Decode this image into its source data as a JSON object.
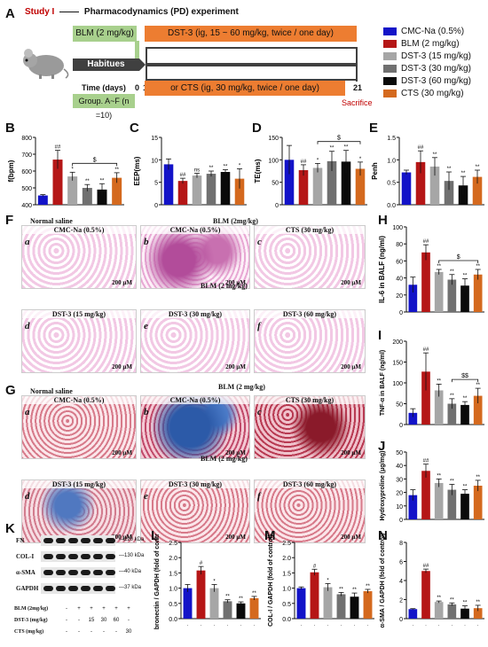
{
  "header": {
    "study": "Study I",
    "title": "Pharmacodynamics (PD) experiment"
  },
  "colors": {
    "cmc": "#1313c8",
    "blm": "#b51616",
    "dst15": "#a6a6a6",
    "dst30": "#707070",
    "dst60": "#0a0a0a",
    "cts": "#d4691e",
    "green_box": "#a8d08d",
    "orange_box": "#ed7d31"
  },
  "panel_labels": {
    "A": "A",
    "B": "B",
    "C": "C",
    "D": "D",
    "E": "E",
    "F": "F",
    "G": "G",
    "H": "H",
    "I": "I",
    "J": "J",
    "K": "K",
    "L": "L",
    "M": "M",
    "N": "N"
  },
  "timeline": {
    "blm_box": "BLM (2 mg/kg)",
    "dst_box": "DST-3 (ig, 15 ~ 60 mg/kg, twice / one day)",
    "cts_box": "or  CTS (ig, 30 mg/kg, twice / one day)",
    "habitues": "Habitues",
    "time_label": "Time (days)",
    "t0": "0",
    "t1": "1",
    "t21": "21",
    "group_box": "Group. A~F (n =10)",
    "sacrifice": "Sacrifice"
  },
  "legend": [
    {
      "label": "CMC-Na (0.5%)",
      "color": "#1313c8"
    },
    {
      "label": "BLM (2 mg/kg)",
      "color": "#b51616"
    },
    {
      "label": "DST-3 (15 mg/kg)",
      "color": "#a6a6a6"
    },
    {
      "label": "DST-3 (30 mg/kg)",
      "color": "#707070"
    },
    {
      "label": "DST-3 (60 mg/kg)",
      "color": "#0a0a0a"
    },
    {
      "label": "CTS (30 mg/kg)",
      "color": "#d4691e"
    }
  ],
  "histology_F": {
    "header_left": "Normal saline",
    "header_right": "BLM (2mg/kg)",
    "mid_caption": "BLM (2 mg/kg)",
    "panels": [
      {
        "letter": "a",
        "title": "CMC-Na (0.5%)",
        "scale": "200 μM"
      },
      {
        "letter": "b",
        "title": "CMC-Na (0.5%)",
        "scale": "200 μM"
      },
      {
        "letter": "c",
        "title": "CTS (30 mg/kg)",
        "scale": "200 μM"
      },
      {
        "letter": "d",
        "title": "DST-3 (15 mg/kg)",
        "scale": "200 μM"
      },
      {
        "letter": "e",
        "title": "DST-3 (30 mg/kg)",
        "scale": "200 μM"
      },
      {
        "letter": "f",
        "title": "DST-3 (60 mg/kg)",
        "scale": "200 μM"
      }
    ]
  },
  "histology_G": {
    "header_left": "Normal saline",
    "header_right": "BLM (2 mg/kg)",
    "mid_caption": "BLM (2 mg/kg)",
    "panels": [
      {
        "letter": "a",
        "title": "CMC-Na (0.5%)",
        "scale": "200 μM"
      },
      {
        "letter": "b",
        "title": "CMC-Na (0.5%)",
        "scale": "200 μM"
      },
      {
        "letter": "c",
        "title": "CTS (30 mg/kg)",
        "scale": "200 μM"
      },
      {
        "letter": "d",
        "title": "DST-3 (15 mg/kg)",
        "scale": "200 μM"
      },
      {
        "letter": "e",
        "title": "DST-3 (30 mg/kg)",
        "scale": "200 μM"
      },
      {
        "letter": "f",
        "title": "DST-3 (60 mg/kg)",
        "scale": "200 μM"
      }
    ]
  },
  "western": {
    "bands": [
      {
        "name": "FN",
        "size": "220 kDa"
      },
      {
        "name": "COL-I",
        "size": "130 kDa"
      },
      {
        "name": "α-SMA",
        "size": "40 kDa"
      },
      {
        "name": "GAPDH",
        "size": "37 kDa"
      }
    ],
    "rows": [
      {
        "label": "BLM (2mg/kg)",
        "cells": [
          "-",
          "+",
          "+",
          "+",
          "+",
          "+"
        ]
      },
      {
        "label": "DST-3 (mg/kg)",
        "cells": [
          "-",
          "-",
          "15",
          "30",
          "60",
          "-"
        ]
      },
      {
        "label": "CTS (mg/kg)",
        "cells": [
          "-",
          "-",
          "-",
          "-",
          "-",
          "30"
        ]
      }
    ]
  },
  "chart_data": [
    {
      "id": "B",
      "type": "bar",
      "ylabel": "f(bpm)",
      "ylim": [
        400,
        800
      ],
      "yticks": [
        400,
        500,
        600,
        700,
        800
      ],
      "values": [
        455,
        668,
        568,
        500,
        490,
        560
      ],
      "errors": [
        5,
        55,
        25,
        20,
        35,
        30
      ],
      "sig": [
        "",
        "##",
        "*",
        "**",
        "**",
        "**"
      ],
      "bracket": {
        "from": 2,
        "to": 5,
        "label": "$"
      }
    },
    {
      "id": "C",
      "type": "bar",
      "ylabel": "EEP(ms)",
      "ylim": [
        0,
        15
      ],
      "yticks": [
        0,
        5,
        10,
        15
      ],
      "values": [
        9.0,
        5.3,
        6.5,
        6.9,
        7.3,
        5.8
      ],
      "errors": [
        1.2,
        0.6,
        0.5,
        0.6,
        0.5,
        2.2
      ],
      "sig": [
        "",
        "##",
        "ns",
        "**",
        "**",
        "*"
      ]
    },
    {
      "id": "D",
      "type": "bar",
      "ylabel": "TE(ms)",
      "ylim": [
        0,
        150
      ],
      "yticks": [
        0,
        50,
        100,
        150
      ],
      "values": [
        100,
        77,
        82,
        97,
        96,
        80
      ],
      "errors": [
        32,
        12,
        10,
        22,
        25,
        15
      ],
      "sig": [
        "",
        "##",
        "*",
        "**",
        "**",
        "*"
      ],
      "bracket": {
        "from": 2,
        "to": 5,
        "label": "$"
      }
    },
    {
      "id": "E",
      "type": "bar",
      "ylabel": "Penh",
      "ylim": [
        0.0,
        1.5
      ],
      "yticks": [
        0.0,
        0.5,
        1.0,
        1.5
      ],
      "values": [
        0.72,
        0.95,
        0.85,
        0.53,
        0.43,
        0.62
      ],
      "errors": [
        0.05,
        0.25,
        0.2,
        0.2,
        0.2,
        0.15
      ],
      "sig": [
        "",
        "##",
        "**",
        "**",
        "**",
        "**"
      ]
    },
    {
      "id": "H",
      "type": "bar",
      "ylabel": "IL-6 in BALF (ng/ml)",
      "ylim": [
        0,
        100
      ],
      "yticks": [
        0,
        20,
        40,
        60,
        80,
        100
      ],
      "values": [
        32,
        70,
        47,
        38,
        31,
        44
      ],
      "errors": [
        9,
        9,
        3,
        6,
        8,
        6
      ],
      "sig": [
        "",
        "##",
        "**",
        "**",
        "**",
        "**"
      ],
      "bracket": {
        "from": 2,
        "to": 5,
        "label": "$"
      }
    },
    {
      "id": "I",
      "type": "bar",
      "ylabel": "TNF-α in BALF (ng/ml)",
      "ylim": [
        0,
        200
      ],
      "yticks": [
        0,
        50,
        100,
        150,
        200
      ],
      "values": [
        28,
        127,
        82,
        50,
        47,
        69
      ],
      "errors": [
        10,
        45,
        15,
        12,
        8,
        18
      ],
      "sig": [
        "",
        "##",
        "**",
        "**",
        "**",
        "**"
      ],
      "bracket": {
        "from": 3,
        "to": 5,
        "label": "$$"
      }
    },
    {
      "id": "J",
      "type": "bar",
      "ylabel": "Hydroxyproline (μg/mg)",
      "ylim": [
        0,
        50
      ],
      "yticks": [
        0,
        10,
        20,
        30,
        40,
        50
      ],
      "values": [
        18,
        36,
        27,
        22,
        19,
        25
      ],
      "errors": [
        4,
        5,
        3,
        4,
        3,
        4
      ],
      "sig": [
        "",
        "##",
        "**",
        "**",
        "**",
        "**"
      ]
    },
    {
      "id": "L",
      "type": "bar",
      "ylabel": "Fibronectin / GAPDH (fold of control)",
      "ylim": [
        0.0,
        2.5
      ],
      "yticks": [
        0.0,
        0.5,
        1.0,
        1.5,
        2.0,
        2.5
      ],
      "values": [
        1.0,
        1.58,
        1.0,
        0.57,
        0.5,
        0.67
      ],
      "errors": [
        0.12,
        0.13,
        0.12,
        0.05,
        0.05,
        0.06
      ],
      "sig": [
        "",
        "#",
        "*",
        "**",
        "**",
        "**"
      ]
    },
    {
      "id": "M",
      "type": "bar",
      "ylabel": "COL-I / GAPDH (fold of control)",
      "ylim": [
        0.0,
        2.5
      ],
      "yticks": [
        0.0,
        0.5,
        1.0,
        1.5,
        2.0,
        2.5
      ],
      "values": [
        1.0,
        1.52,
        1.03,
        0.8,
        0.72,
        0.9
      ],
      "errors": [
        0.04,
        0.1,
        0.12,
        0.06,
        0.12,
        0.06
      ],
      "sig": [
        "",
        "#",
        "*",
        "**",
        "**",
        "**"
      ]
    },
    {
      "id": "N",
      "type": "bar",
      "ylabel": "α-SMA / GAPDH (fold of control)",
      "ylim": [
        0,
        8
      ],
      "yticks": [
        0,
        2,
        4,
        6,
        8
      ],
      "values": [
        1.0,
        5.0,
        1.75,
        1.5,
        1.05,
        1.1
      ],
      "errors": [
        0.05,
        0.2,
        0.1,
        0.15,
        0.3,
        0.3
      ],
      "sig": [
        "",
        "##",
        "**",
        "**",
        "**",
        "**"
      ]
    }
  ]
}
